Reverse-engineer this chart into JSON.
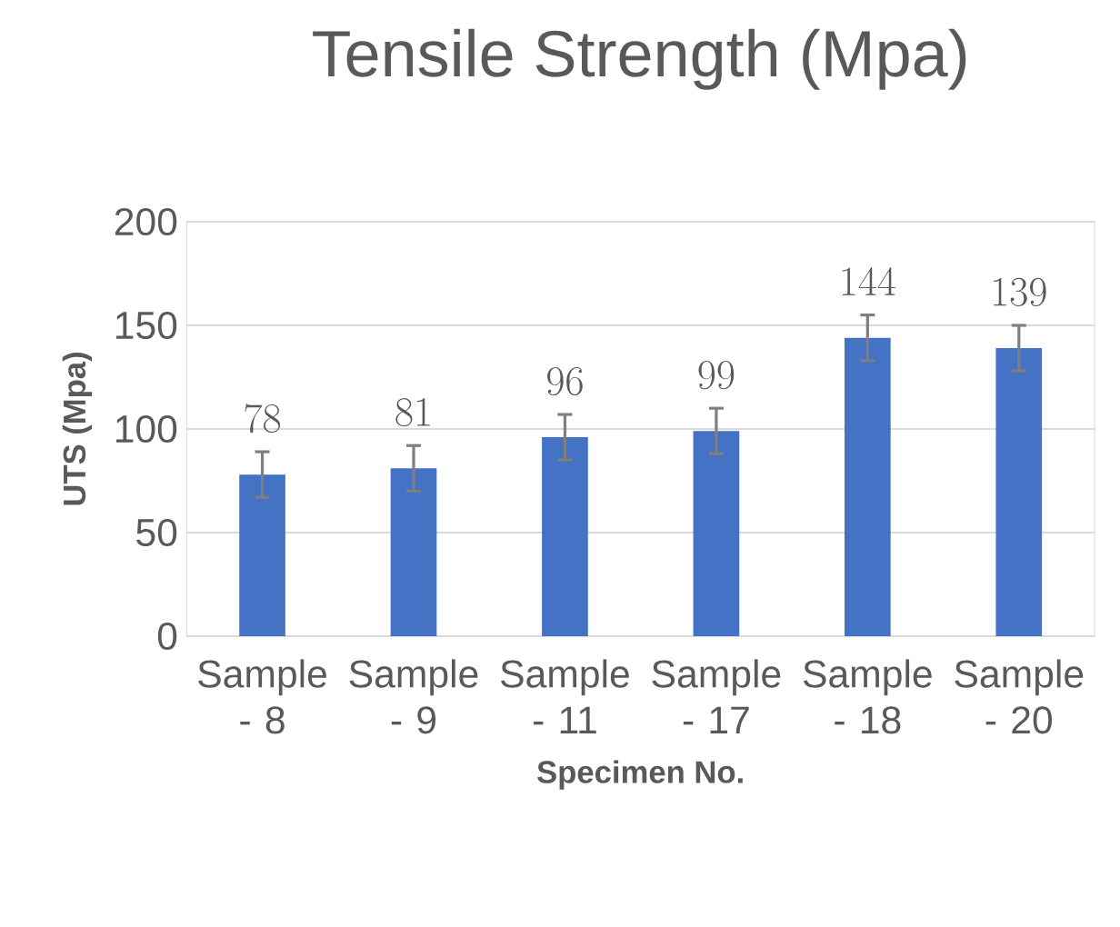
{
  "chart_data": {
    "type": "bar",
    "title": "Tensile Strength (Mpa)",
    "xlabel": "Specimen No.",
    "ylabel": "UTS (Mpa)",
    "categories": [
      "Sample - 8",
      "Sample - 9",
      "Sample - 11",
      "Sample - 17",
      "Sample - 18",
      "Sample - 20"
    ],
    "values": [
      78,
      81,
      96,
      99,
      144,
      139
    ],
    "errors": [
      11,
      11,
      11,
      11,
      11,
      11
    ],
    "color": "#4472c4",
    "ylim": [
      0,
      200
    ],
    "yticks": [
      0,
      50,
      100,
      150,
      200
    ],
    "grid": "y",
    "data_labels": true
  }
}
